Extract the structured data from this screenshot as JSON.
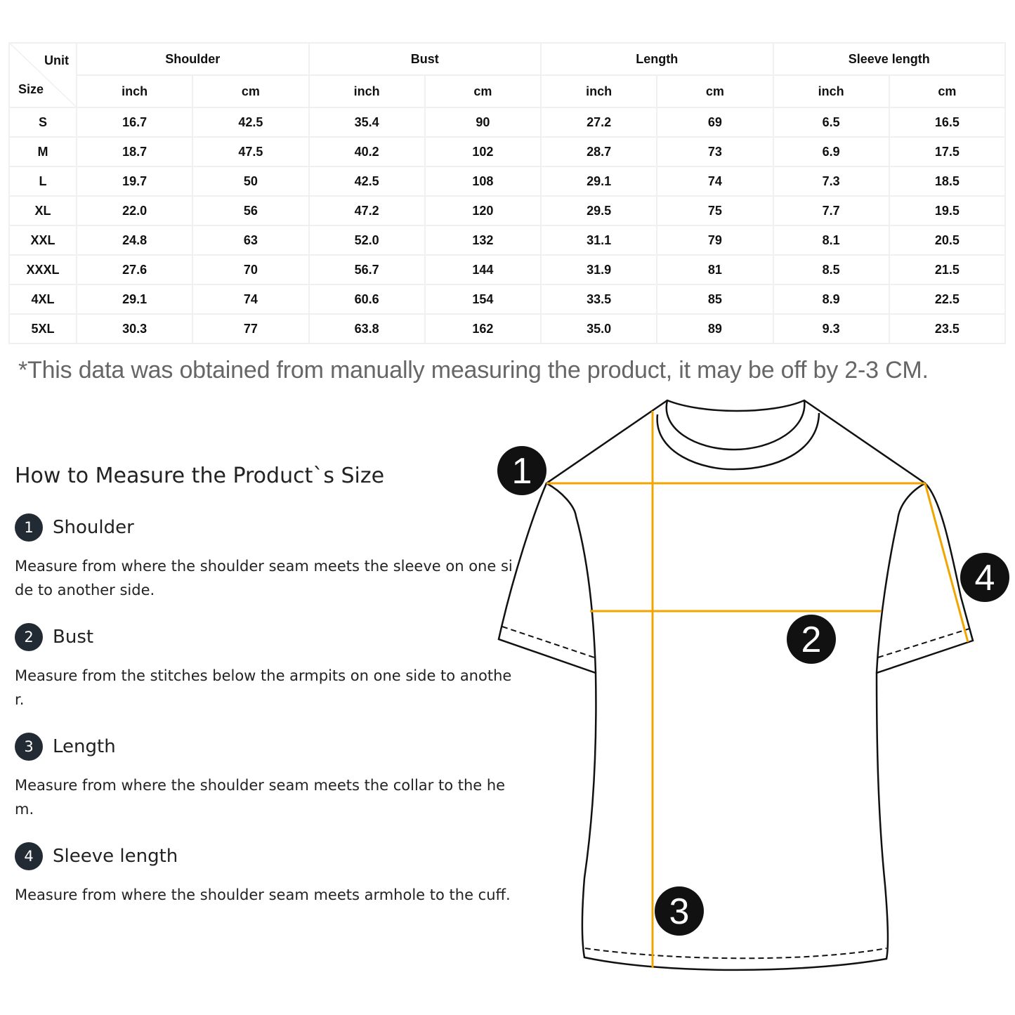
{
  "table": {
    "corner_unit": "Unit",
    "corner_size": "Size",
    "groups": [
      "Shoulder",
      "Bust",
      "Length",
      "Sleeve length"
    ],
    "units": [
      "inch",
      "cm",
      "inch",
      "cm",
      "inch",
      "cm",
      "inch",
      "cm"
    ],
    "rows": [
      {
        "size": "S",
        "values": [
          "16.7",
          "42.5",
          "35.4",
          "90",
          "27.2",
          "69",
          "6.5",
          "16.5"
        ]
      },
      {
        "size": "M",
        "values": [
          "18.7",
          "47.5",
          "40.2",
          "102",
          "28.7",
          "73",
          "6.9",
          "17.5"
        ]
      },
      {
        "size": "L",
        "values": [
          "19.7",
          "50",
          "42.5",
          "108",
          "29.1",
          "74",
          "7.3",
          "18.5"
        ]
      },
      {
        "size": "XL",
        "values": [
          "22.0",
          "56",
          "47.2",
          "120",
          "29.5",
          "75",
          "7.7",
          "19.5"
        ]
      },
      {
        "size": "XXL",
        "values": [
          "24.8",
          "63",
          "52.0",
          "132",
          "31.1",
          "79",
          "8.1",
          "20.5"
        ]
      },
      {
        "size": "XXXL",
        "values": [
          "27.6",
          "70",
          "56.7",
          "144",
          "31.9",
          "81",
          "8.5",
          "21.5"
        ]
      },
      {
        "size": "4XL",
        "values": [
          "29.1",
          "74",
          "60.6",
          "154",
          "33.5",
          "85",
          "8.9",
          "22.5"
        ]
      },
      {
        "size": "5XL",
        "values": [
          "30.3",
          "77",
          "63.8",
          "162",
          "35.0",
          "89",
          "9.3",
          "23.5"
        ]
      }
    ]
  },
  "note": "*This data was obtained from manually measuring the product, it may be off by 2-3 CM.",
  "guide": {
    "title": "How to Measure the Product`s Size",
    "items": [
      {
        "num": "1",
        "title": "Shoulder",
        "desc": "Measure from where the shoulder seam meets the sleeve on one side to another side."
      },
      {
        "num": "2",
        "title": "Bust",
        "desc": "Measure from the stitches below the armpits on one side to another."
      },
      {
        "num": "3",
        "title": "Length",
        "desc": "Measure from where the shoulder seam meets the collar to the hem."
      },
      {
        "num": "4",
        "title": "Sleeve length",
        "desc": "Measure from where the shoulder seam meets armhole to the cuff."
      }
    ]
  },
  "diagram": {
    "markers": [
      "1",
      "2",
      "3",
      "4"
    ],
    "line_color": "#F0A500"
  }
}
